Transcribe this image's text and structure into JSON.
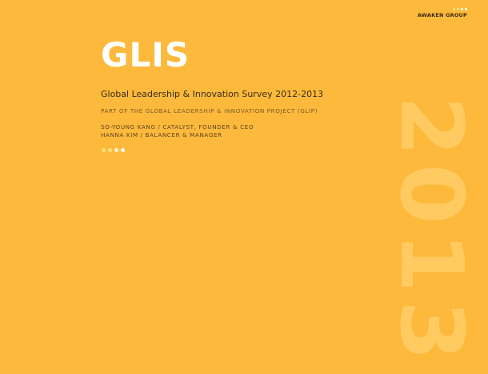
{
  "brand": {
    "name": "AWAKEN GROUP",
    "dot_colors": [
      "#ffe27a",
      "#ffe27a",
      "#ffffff",
      "#ffffff"
    ]
  },
  "cover": {
    "title": "GLIS",
    "subtitle": "Global Leadership & Innovation Survey 2012-2013",
    "project_line": "PART OF THE GLOBAL LEADERSHIP & INNOVATION PROJECT (GLIP)",
    "authors": [
      "SO-YOUNG KANG / CATALYST, FOUNDER & CEO",
      "HANNA KIM / BALANCER & MANAGER"
    ],
    "dot_colors": [
      "#ffe27a",
      "#ffe27a",
      "#fff3c4",
      "#ffffff"
    ],
    "year": "2013"
  },
  "colors": {
    "background": "#FDB93C",
    "year_watermark": "#FFCB61",
    "title": "#ffffff"
  }
}
